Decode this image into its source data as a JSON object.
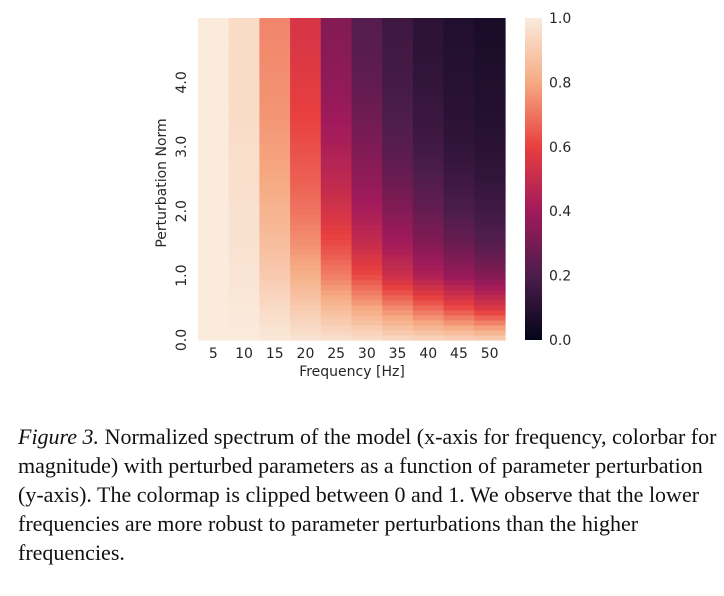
{
  "chart_data": {
    "type": "heatmap",
    "xlabel": "Frequency [Hz]",
    "ylabel": "Perturbation Norm",
    "x": [
      5,
      10,
      15,
      20,
      25,
      30,
      35,
      40,
      45,
      50
    ],
    "x_tick_labels": [
      "5",
      "10",
      "15",
      "20",
      "25",
      "30",
      "35",
      "40",
      "45",
      "50"
    ],
    "y_tick_labels": [
      "0.0",
      "1.0",
      "2.0",
      "3.0",
      "4.0"
    ],
    "ylim": [
      0,
      5
    ],
    "colorbar": {
      "range": [
        0,
        1
      ],
      "ticks": [
        "0.0",
        "0.2",
        "0.4",
        "0.6",
        "0.8",
        "1.0"
      ],
      "colormap": "rocket"
    },
    "rows": [
      {
        "perturbation_norm": 0.0,
        "values": [
          1.0,
          1.0,
          0.99,
          0.98,
          0.97,
          0.96,
          0.95,
          0.94,
          0.93,
          0.92
        ]
      },
      {
        "perturbation_norm": 0.5,
        "values": [
          1.0,
          0.99,
          0.95,
          0.9,
          0.85,
          0.8,
          0.74,
          0.68,
          0.62,
          0.56
        ]
      },
      {
        "perturbation_norm": 1.0,
        "values": [
          1.0,
          0.98,
          0.9,
          0.82,
          0.72,
          0.62,
          0.52,
          0.44,
          0.38,
          0.33
        ]
      },
      {
        "perturbation_norm": 1.5,
        "values": [
          1.0,
          0.97,
          0.86,
          0.75,
          0.62,
          0.5,
          0.41,
          0.33,
          0.27,
          0.22
        ]
      },
      {
        "perturbation_norm": 2.0,
        "values": [
          1.0,
          0.97,
          0.83,
          0.7,
          0.54,
          0.42,
          0.33,
          0.26,
          0.2,
          0.17
        ]
      },
      {
        "perturbation_norm": 2.5,
        "values": [
          1.0,
          0.96,
          0.8,
          0.66,
          0.48,
          0.36,
          0.27,
          0.21,
          0.16,
          0.13
        ]
      },
      {
        "perturbation_norm": 3.0,
        "values": [
          1.0,
          0.96,
          0.78,
          0.63,
          0.43,
          0.32,
          0.23,
          0.17,
          0.13,
          0.11
        ]
      },
      {
        "perturbation_norm": 3.5,
        "values": [
          1.0,
          0.95,
          0.76,
          0.6,
          0.39,
          0.28,
          0.2,
          0.15,
          0.11,
          0.09
        ]
      },
      {
        "perturbation_norm": 4.0,
        "values": [
          1.0,
          0.95,
          0.75,
          0.58,
          0.36,
          0.25,
          0.18,
          0.13,
          0.1,
          0.08
        ]
      },
      {
        "perturbation_norm": 4.5,
        "values": [
          1.0,
          0.95,
          0.74,
          0.56,
          0.34,
          0.23,
          0.17,
          0.12,
          0.09,
          0.07
        ]
      },
      {
        "perturbation_norm": 5.0,
        "values": [
          1.0,
          0.95,
          0.73,
          0.55,
          0.33,
          0.22,
          0.16,
          0.11,
          0.08,
          0.06
        ]
      }
    ]
  },
  "caption": {
    "label": "Figure 3.",
    "text": " Normalized spectrum of the model (x-axis for frequency, colorbar for magnitude) with perturbed parameters as a function of parameter perturbation (y-axis). The colormap is clipped between 0 and 1. We observe that the lower frequencies are more robust to parameter perturbations than the higher frequencies."
  }
}
